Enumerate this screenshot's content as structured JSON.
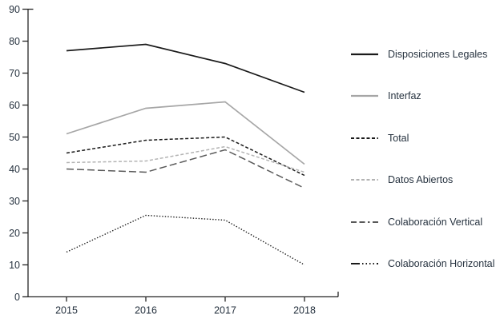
{
  "chart_data": {
    "type": "line",
    "title": "",
    "xlabel": "",
    "ylabel": "",
    "x": [
      2015,
      2016,
      2017,
      2018
    ],
    "xticklabels": [
      "2015",
      "2016",
      "2017",
      "2018"
    ],
    "yticklabels": [
      "0",
      "10",
      "20",
      "30",
      "40",
      "50",
      "60",
      "70",
      "80",
      "90"
    ],
    "ylim": [
      0,
      90
    ],
    "ytick_step": 10,
    "grid": false,
    "legend_position": "right",
    "series": [
      {
        "name": "Disposiciones Legales",
        "values": [
          77,
          79,
          73,
          64
        ],
        "color": "#1a1a1a",
        "line_style": "solid",
        "width": 1.7
      },
      {
        "name": "Interfaz",
        "values": [
          51,
          59,
          61,
          41.5
        ],
        "color": "#a6a6a6",
        "line_style": "solid",
        "width": 1.7
      },
      {
        "name": "Total",
        "values": [
          45,
          49,
          50,
          38
        ],
        "color": "#1a1a1a",
        "line_style": "dashed",
        "width": 1.5
      },
      {
        "name": "Datos Abiertos",
        "values": [
          42,
          42.5,
          47,
          39
        ],
        "color": "#b3b3b3",
        "line_style": "dashed",
        "width": 1.5
      },
      {
        "name": "Colaboración Vertical",
        "values": [
          40,
          39,
          46,
          34
        ],
        "color": "#595959",
        "line_style": "long-dash",
        "width": 1.5
      },
      {
        "name": "Colaboración Horizontal",
        "values": [
          14,
          25.5,
          24,
          10
        ],
        "color": "#1a1a1a",
        "line_style": "dotted",
        "width": 1.4
      }
    ]
  },
  "colors": {
    "axis": "#262626",
    "text": "#26323f",
    "background": "#ffffff"
  }
}
